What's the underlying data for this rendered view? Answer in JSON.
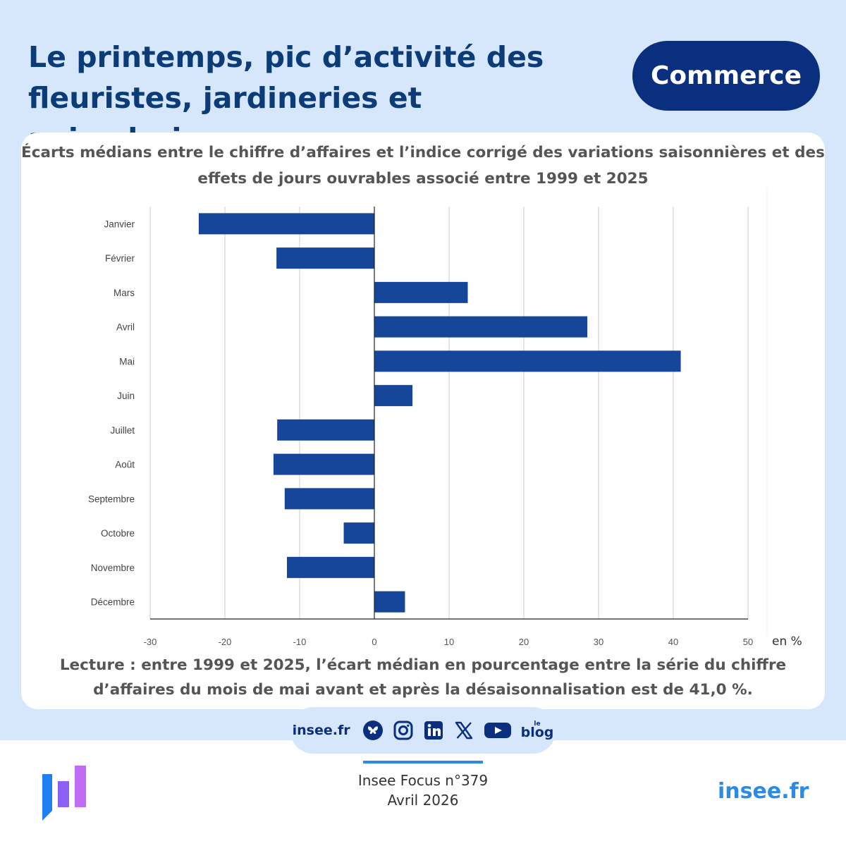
{
  "header": {
    "title": "Le printemps, pic d’activité des fleuristes, jardineries et animaleries",
    "badge": "Commerce"
  },
  "chart_data": {
    "type": "bar",
    "orientation": "horizontal",
    "title": "Écarts médians entre le chiffre d’affaires et l’indice corrigé des variations saisonnières et des effets de jours ouvrables associé entre 1999 et 2025",
    "categories": [
      "Janvier",
      "Février",
      "Mars",
      "Avril",
      "Mai",
      "Juin",
      "Juillet",
      "Août",
      "Septembre",
      "Octobre",
      "Novembre",
      "Décembre"
    ],
    "values": [
      -23.5,
      -13.1,
      12.5,
      28.5,
      41.0,
      5.1,
      -13.0,
      -13.5,
      -12.0,
      -4.1,
      -11.7,
      4.1
    ],
    "xlim": [
      -30,
      50
    ],
    "xticks": [
      -30,
      -20,
      -10,
      0,
      10,
      20,
      30,
      40,
      50
    ],
    "xlabel": "en %",
    "ylabel": "",
    "grid": true,
    "bar_color": "#16469a"
  },
  "reading": "Lecture : entre 1999 et 2025, l’écart médian en pourcentage entre la série du chiffre d’affaires du mois de mai avant et après la désaisonnalisation est de 41,0 %.",
  "social": {
    "site": "insee.fr",
    "icons": [
      "bluesky-icon",
      "instagram-icon",
      "linkedin-icon",
      "x-icon",
      "youtube-icon",
      "blog-icon"
    ],
    "blog_le": "le",
    "blog_word": "blog"
  },
  "footer": {
    "publication": "Insee Focus n°379",
    "date": "Avril 2026",
    "site": "insee.fr"
  },
  "colors": {
    "background": "#d6e6fb",
    "title": "#0c3c78",
    "badge": "#0a2f7f",
    "accent": "#2b8be6"
  }
}
